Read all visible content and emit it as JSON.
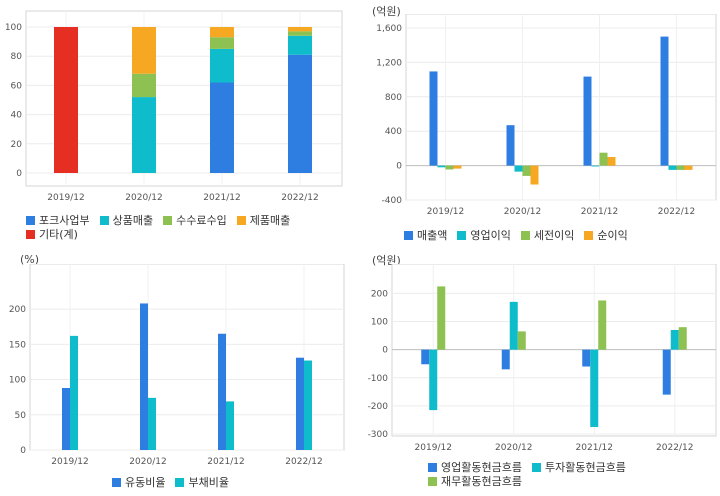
{
  "colors": {
    "blue": "#2e7de1",
    "cyan": "#0fbccc",
    "green": "#8dc152",
    "orange": "#f7a823",
    "red": "#e52f22"
  },
  "chart_data": [
    {
      "type": "bar",
      "stacked": true,
      "categories": [
        "2019/12",
        "2020/12",
        "2021/12",
        "2022/12"
      ],
      "ylim": [
        0,
        100
      ],
      "yticks": [
        0,
        20,
        40,
        60,
        80,
        100
      ],
      "grid": true,
      "legend_position": "bottom",
      "series": [
        {
          "name": "포크사업부",
          "color": "#2e7de1",
          "values": [
            0,
            0,
            62,
            81
          ]
        },
        {
          "name": "상품매출",
          "color": "#0fbccc",
          "values": [
            0,
            52,
            23,
            13
          ]
        },
        {
          "name": "수수료수입",
          "color": "#8dc152",
          "values": [
            0,
            16,
            8,
            3
          ]
        },
        {
          "name": "제품매출",
          "color": "#f7a823",
          "values": [
            0,
            32,
            7,
            3
          ]
        },
        {
          "name": "기타(계)",
          "color": "#e52f22",
          "values": [
            100,
            0,
            0,
            0
          ]
        }
      ]
    },
    {
      "type": "bar",
      "unit": "(억원)",
      "categories": [
        "2019/12",
        "2020/12",
        "2021/12",
        "2022/12"
      ],
      "ylim": [
        -400,
        1600
      ],
      "yticks": [
        -400,
        0,
        400,
        800,
        1200,
        1600
      ],
      "ytick_labels": [
        "-400",
        "0",
        "400",
        "800",
        "1,200",
        "1,600"
      ],
      "grid": true,
      "legend_position": "bottom",
      "series": [
        {
          "name": "매출액",
          "color": "#2e7de1",
          "values": [
            1095,
            470,
            1035,
            1500
          ]
        },
        {
          "name": "영업이익",
          "color": "#0fbccc",
          "values": [
            -20,
            -70,
            -10,
            -50
          ]
        },
        {
          "name": "세전이익",
          "color": "#8dc152",
          "values": [
            -45,
            -120,
            150,
            -50
          ]
        },
        {
          "name": "순이익",
          "color": "#f7a823",
          "values": [
            -35,
            -220,
            100,
            -50
          ]
        }
      ]
    },
    {
      "type": "bar",
      "unit": "(%)",
      "categories": [
        "2019/12",
        "2020/12",
        "2021/12",
        "2022/12"
      ],
      "ylim": [
        0,
        220
      ],
      "yticks": [
        0,
        50,
        100,
        150,
        200
      ],
      "grid": true,
      "legend_position": "bottom",
      "series": [
        {
          "name": "유동비율",
          "color": "#2e7de1",
          "values": [
            88,
            208,
            165,
            131
          ]
        },
        {
          "name": "부채비율",
          "color": "#0fbccc",
          "values": [
            162,
            74,
            69,
            127
          ]
        }
      ]
    },
    {
      "type": "bar",
      "unit": "(억원)",
      "categories": [
        "2019/12",
        "2020/12",
        "2021/12",
        "2022/12"
      ],
      "ylim": [
        -300,
        230
      ],
      "yticks": [
        -300,
        -200,
        -100,
        0,
        100,
        200
      ],
      "grid": true,
      "legend_position": "bottom",
      "series": [
        {
          "name": "영업활동현금흐름",
          "color": "#2e7de1",
          "values": [
            -52,
            -70,
            -60,
            -160
          ]
        },
        {
          "name": "투자활동현금흐름",
          "color": "#0fbccc",
          "values": [
            -215,
            170,
            -275,
            70
          ]
        },
        {
          "name": "재무활동현금흐름",
          "color": "#8dc152",
          "values": [
            225,
            65,
            175,
            80
          ]
        }
      ]
    }
  ]
}
